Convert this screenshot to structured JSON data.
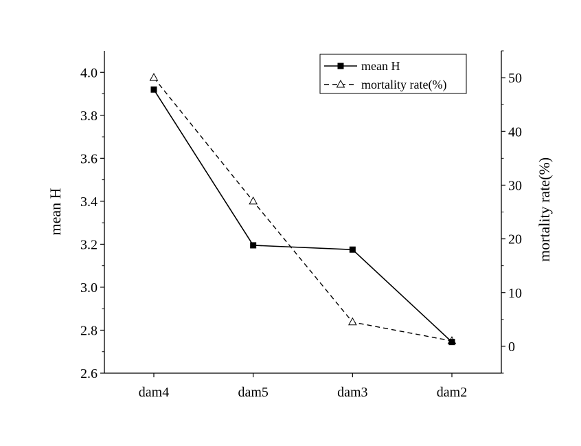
{
  "chart_data": {
    "type": "line",
    "categories": [
      "dam4",
      "dam5",
      "dam3",
      "dam2"
    ],
    "series": [
      {
        "name": "mean H",
        "axis": "left",
        "marker": "filled-square",
        "line": "solid",
        "color": "#000000",
        "values": [
          3.92,
          3.195,
          3.175,
          2.745
        ]
      },
      {
        "name": "mortality rate(%)",
        "axis": "right",
        "marker": "open-triangle",
        "line": "dashed",
        "color": "#000000",
        "values": [
          50,
          27,
          4.5,
          1
        ]
      }
    ],
    "title": "",
    "xlabel": "",
    "ylabel_left": "mean H",
    "ylabel_right": "mortality rate(%)",
    "ylim_left": [
      2.6,
      4.1
    ],
    "ylim_right": [
      -5,
      55
    ],
    "yticks_left": [
      "2.6",
      "2.8",
      "3.0",
      "3.2",
      "3.4",
      "3.6",
      "3.8",
      "4.0"
    ],
    "yticks_right": [
      "0",
      "10",
      "20",
      "30",
      "40",
      "50"
    ],
    "legend_position": "top-right",
    "grid": false
  }
}
